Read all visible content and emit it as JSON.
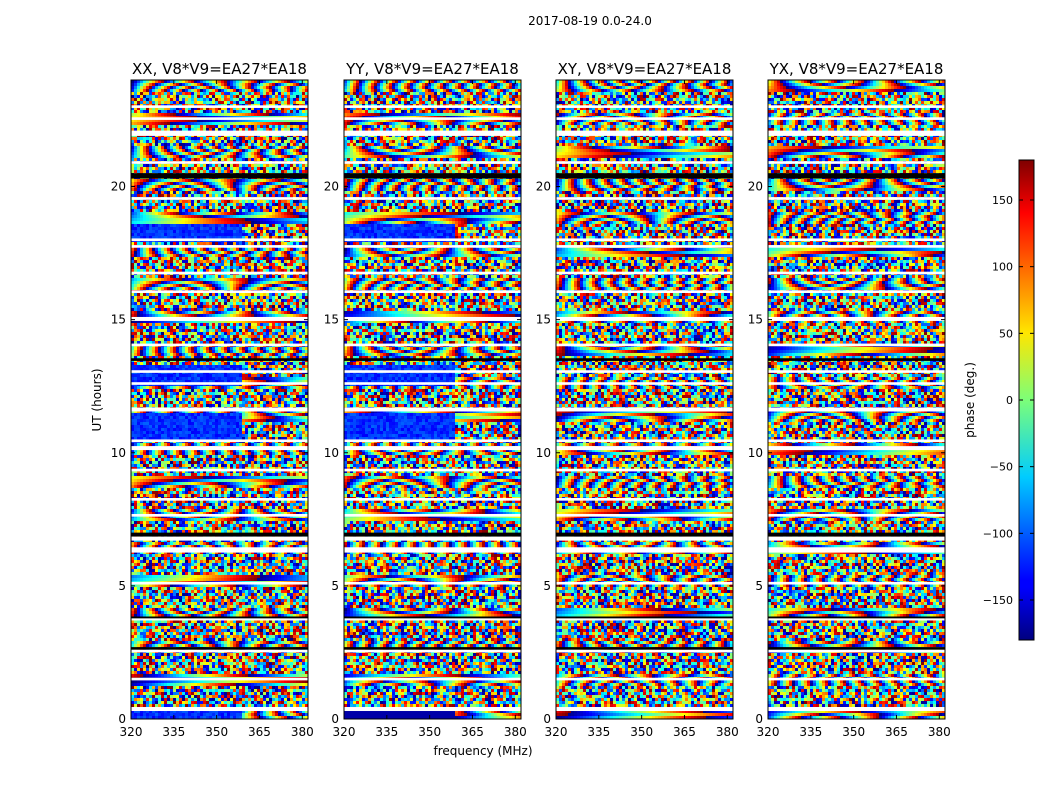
{
  "suptitle": "2017-08-19 0.0-24.0",
  "chart_data": {
    "type": "heatmap",
    "x_range_mhz": [
      320,
      382
    ],
    "y_range_hours": [
      0,
      24
    ],
    "xticks": [
      320,
      335,
      350,
      365,
      380
    ],
    "xtick_labels": [
      "320",
      "335",
      "350",
      "365",
      "380"
    ],
    "yticks": [
      0,
      5,
      10,
      15,
      20
    ],
    "ytick_labels": [
      "0",
      "5",
      "10",
      "15",
      "20"
    ],
    "xlabel": "frequency (MHz)",
    "ylabel": "UT (hours)",
    "panels": [
      {
        "title": "XX, V8*V9=EA27*EA18",
        "name": "xx"
      },
      {
        "title": "YY, V8*V9=EA27*EA18",
        "name": "yy"
      },
      {
        "title": "XY, V8*V9=EA27*EA18",
        "name": "xy"
      },
      {
        "title": "YX, V8*V9=EA27*EA18",
        "name": "yx"
      }
    ],
    "colorbar": {
      "label": "phase (deg.)",
      "range": [
        -180,
        180
      ],
      "ticks": [
        150,
        100,
        50,
        0,
        -50,
        -100,
        -150
      ],
      "tick_labels": [
        "150",
        "100",
        "50",
        "0",
        "−50",
        "−100",
        "−150"
      ],
      "colormap": "jet"
    },
    "note": "Each panel shows phase vs frequency and UT time; horizontal white gaps are flagged/no-data time intervals."
  }
}
